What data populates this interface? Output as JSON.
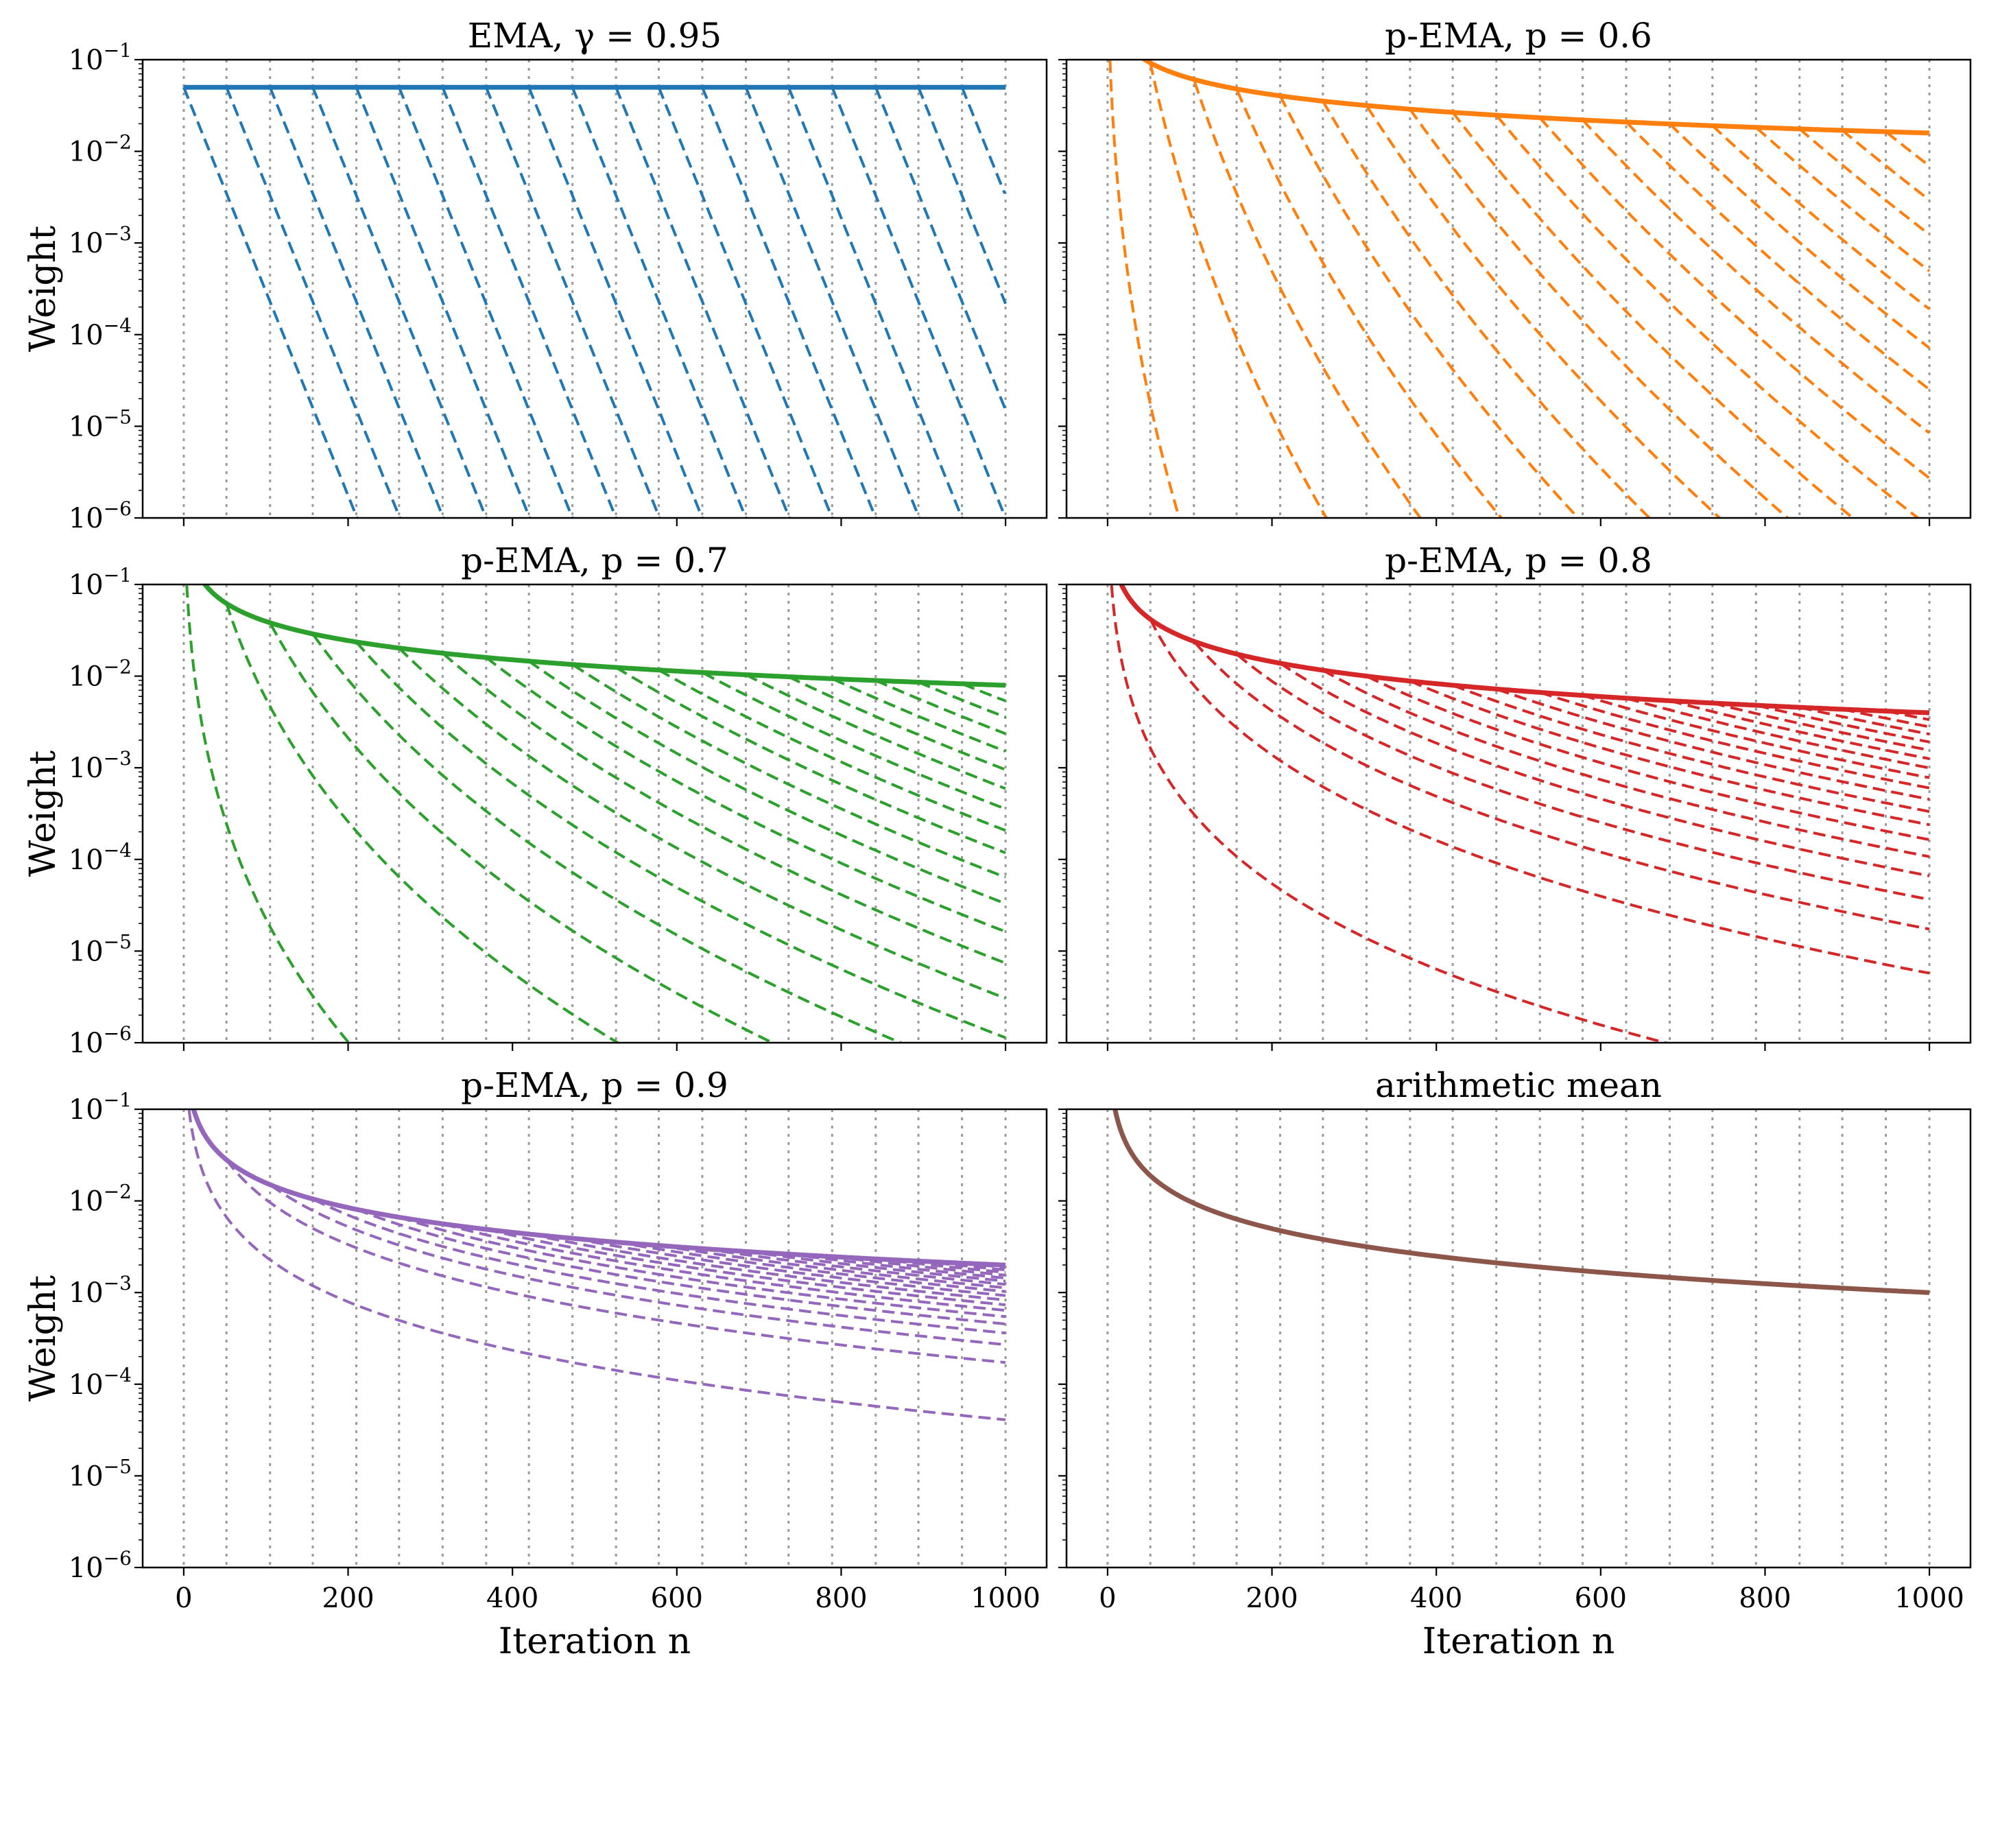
{
  "chart_data": [
    {
      "type": "line",
      "kind": "ema",
      "gamma": 0.95,
      "title": "EMA, γ = 0.95",
      "ylabel": "Weight",
      "xlabel": "",
      "color": "#1f77b4",
      "yscale": "log",
      "xlim": [
        -50,
        1050
      ],
      "ylim": [
        1e-06,
        0.1
      ],
      "xticks": [
        0,
        200,
        400,
        600,
        800,
        1000
      ],
      "show_xticklabels": false,
      "show_yticklabels": true,
      "yticklabels": [
        "10−1",
        "10−2",
        "10−3",
        "10−4",
        "10−5",
        "10−6"
      ],
      "marker_iterations": [
        0,
        52,
        105,
        157,
        210,
        262,
        315,
        368,
        420,
        473,
        526,
        578,
        631,
        684,
        736,
        789,
        842,
        894,
        947,
        1000
      ],
      "series": [
        {
          "style": "solid",
          "points": [
            [
              0,
              0.05
            ],
            [
              1000,
              0.05
            ]
          ]
        },
        {
          "style": "dashed",
          "x_start": [
            0,
            52,
            105,
            157,
            210,
            262,
            315,
            368,
            420,
            473,
            526,
            578,
            631,
            684,
            736,
            789,
            842,
            894,
            947
          ],
          "y_start": 0.05,
          "decay_per_iteration": 0.95
        }
      ]
    },
    {
      "type": "line",
      "kind": "pema",
      "p": 0.6,
      "title": "p-EMA, p = 0.6",
      "ylabel": "",
      "xlabel": "",
      "color": "#ff7f0e",
      "yscale": "log",
      "xlim": [
        -50,
        1050
      ],
      "ylim": [
        1e-06,
        0.1
      ],
      "xticks": [
        0,
        200,
        400,
        600,
        800,
        1000
      ],
      "show_xticklabels": false,
      "show_yticklabels": false,
      "marker_iterations": [
        0,
        52,
        105,
        157,
        210,
        262,
        315,
        368,
        420,
        473,
        526,
        578,
        631,
        684,
        736,
        789,
        842,
        894,
        947,
        1000
      ],
      "series": [
        {
          "style": "solid",
          "points": [
            [
              1,
              0.1
            ],
            [
              50,
              0.096
            ],
            [
              200,
              0.042
            ],
            [
              400,
              0.028
            ],
            [
              600,
              0.022
            ],
            [
              800,
              0.018
            ],
            [
              1000,
              0.016
            ]
          ]
        },
        {
          "style": "dashed",
          "x_start": [
            0,
            52,
            105,
            157,
            210,
            262,
            315,
            368,
            420,
            473,
            526,
            578,
            631,
            684,
            736,
            789,
            842,
            894,
            947
          ],
          "y_end_at_1000": [
            3.9e-48,
            2.7e-13,
            7.2e-09,
            3.3e-07,
            1.8e-06,
            1.1e-05,
            5.5e-05,
            0.00021,
            0.00064,
            0.0016,
            0.0035,
            0.0067,
            0.011,
            0.014
          ]
        }
      ]
    },
    {
      "type": "line",
      "kind": "pema",
      "p": 0.7,
      "title": "p-EMA, p = 0.7",
      "ylabel": "Weight",
      "xlabel": "",
      "color": "#2ca02c",
      "yscale": "log",
      "xlim": [
        -50,
        1050
      ],
      "ylim": [
        1e-06,
        0.1
      ],
      "xticks": [
        0,
        200,
        400,
        600,
        800,
        1000
      ],
      "show_xticklabels": false,
      "show_yticklabels": true,
      "yticklabels": [
        "10−1",
        "10−2",
        "10−3",
        "10−4",
        "10−5",
        "10−6"
      ],
      "marker_iterations": [
        0,
        52,
        105,
        157,
        210,
        262,
        315,
        368,
        420,
        473,
        526,
        578,
        631,
        684,
        736,
        789,
        842,
        894,
        947,
        1000
      ],
      "series": [
        {
          "style": "solid",
          "points": [
            [
              25,
              0.1
            ],
            [
              100,
              0.04
            ],
            [
              200,
              0.025
            ],
            [
              400,
              0.016
            ],
            [
              600,
              0.012
            ],
            [
              800,
              0.0095
            ],
            [
              1000,
              0.008
            ]
          ]
        },
        {
          "style": "dashed",
          "x_start": [
            0,
            52,
            105,
            157,
            210,
            262,
            315,
            368,
            420,
            473,
            526,
            578,
            631,
            684,
            736,
            789,
            842,
            894,
            947
          ],
          "y_end_at_1000": [
            1.2e-10,
            4.8e-08,
            1.1e-06,
            3.8e-06,
            1.7e-05,
            5.5e-05,
            0.00011,
            0.00021,
            0.00045,
            0.00086,
            0.0015,
            0.0025,
            0.0038,
            0.0055,
            0.0073
          ]
        }
      ]
    },
    {
      "type": "line",
      "kind": "pema",
      "p": 0.8,
      "title": "p-EMA, p = 0.8",
      "ylabel": "",
      "xlabel": "",
      "color": "#d62728",
      "yscale": "log",
      "xlim": [
        -50,
        1050
      ],
      "ylim": [
        1e-06,
        0.1
      ],
      "xticks": [
        0,
        200,
        400,
        600,
        800,
        1000
      ],
      "show_xticklabels": false,
      "show_yticklabels": false,
      "marker_iterations": [
        0,
        52,
        105,
        157,
        210,
        262,
        315,
        368,
        420,
        473,
        526,
        578,
        631,
        684,
        736,
        789,
        842,
        894,
        947,
        1000
      ],
      "series": [
        {
          "style": "solid",
          "points": [
            [
              8,
              0.1
            ],
            [
              50,
              0.04
            ],
            [
              200,
              0.012
            ],
            [
              400,
              0.008
            ],
            [
              600,
              0.0058
            ],
            [
              800,
              0.0048
            ],
            [
              1000,
              0.004
            ]
          ]
        },
        {
          "style": "dashed",
          "x_start": [
            0,
            52,
            105,
            157,
            210,
            262,
            315,
            368,
            420,
            473,
            526,
            578,
            631,
            684,
            736,
            789,
            842,
            894,
            947
          ],
          "y_end_at_1000": [
            2.8e-07,
            5.8e-06,
            1.7e-05,
            3.8e-05,
            7.2e-05,
            0.00012,
            0.00018,
            0.00026,
            0.00036,
            0.0005,
            0.00068,
            0.0009,
            0.0012,
            0.0015,
            0.0019,
            0.0023,
            0.0028,
            0.0033,
            0.0037
          ]
        }
      ]
    },
    {
      "type": "line",
      "kind": "pema",
      "p": 0.9,
      "title": "p-EMA, p = 0.9",
      "ylabel": "Weight",
      "xlabel": "Iteration n",
      "color": "#9467bd",
      "yscale": "log",
      "xlim": [
        -50,
        1050
      ],
      "ylim": [
        1e-06,
        0.1
      ],
      "xticks": [
        0,
        200,
        400,
        600,
        800,
        1000
      ],
      "xticklabels": [
        "0",
        "200",
        "400",
        "600",
        "800",
        "1000"
      ],
      "show_xticklabels": true,
      "show_yticklabels": true,
      "yticklabels": [
        "10−1",
        "10−2",
        "10−3",
        "10−4",
        "10−5",
        "10−6"
      ],
      "marker_iterations": [
        0,
        52,
        105,
        157,
        210,
        262,
        315,
        368,
        420,
        473,
        526,
        578,
        631,
        684,
        736,
        789,
        842,
        894,
        947,
        1000
      ],
      "series": [
        {
          "style": "solid",
          "points": [
            [
              8,
              0.1
            ],
            [
              50,
              0.026
            ],
            [
              200,
              0.008
            ],
            [
              400,
              0.0044
            ],
            [
              600,
              0.0031
            ],
            [
              800,
              0.0025
            ],
            [
              1000,
              0.002
            ]
          ]
        },
        {
          "style": "dashed",
          "x_start": [
            0,
            52,
            105,
            157,
            210,
            262,
            315,
            368,
            420,
            473,
            526,
            578,
            631,
            684,
            736,
            789,
            842,
            894,
            947
          ],
          "y_end_at_1000": [
            4e-05,
            0.00017,
            0.0003,
            0.00043,
            0.00055,
            0.00067,
            0.00078,
            0.00089,
            0.001,
            0.0011,
            0.0012,
            0.0013,
            0.0014,
            0.0015,
            0.0016,
            0.0017,
            0.0018,
            0.0019,
            0.002
          ]
        }
      ]
    },
    {
      "type": "line",
      "kind": "mean",
      "title": "arithmetic mean",
      "ylabel": "",
      "xlabel": "Iteration n",
      "color": "#8c564b",
      "yscale": "log",
      "xlim": [
        -50,
        1050
      ],
      "ylim": [
        1e-06,
        0.1
      ],
      "xticks": [
        0,
        200,
        400,
        600,
        800,
        1000
      ],
      "xticklabels": [
        "0",
        "200",
        "400",
        "600",
        "800",
        "1000"
      ],
      "show_xticklabels": true,
      "show_yticklabels": false,
      "marker_iterations": [
        0,
        52,
        105,
        157,
        210,
        262,
        315,
        368,
        420,
        473,
        526,
        578,
        631,
        684,
        736,
        789,
        842,
        894,
        947,
        1000
      ],
      "series": [
        {
          "style": "solid",
          "points": [
            [
              10,
              0.1
            ],
            [
              50,
              0.02
            ],
            [
              200,
              0.005
            ],
            [
              400,
              0.0025
            ],
            [
              600,
              0.0017
            ],
            [
              800,
              0.00125
            ],
            [
              1000,
              0.001
            ]
          ]
        }
      ]
    }
  ]
}
